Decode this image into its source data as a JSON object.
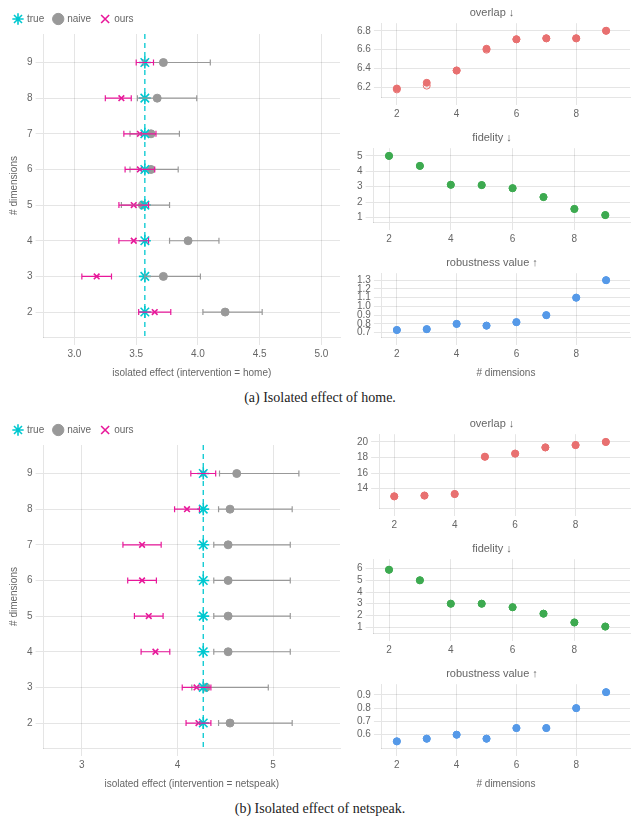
{
  "chart_data": [
    {
      "type": "scatter",
      "y": [
        2,
        3,
        4,
        5,
        6,
        7,
        8,
        9
      ],
      "series": [
        {
          "name": "true",
          "color": "#00C8D0",
          "marker": "star",
          "values": [
            3.57,
            3.57,
            3.57,
            3.57,
            3.57,
            3.57,
            3.57,
            3.57
          ]
        },
        {
          "name": "naive",
          "color": "#999999",
          "marker": "circle",
          "values": [
            4.22,
            3.72,
            3.92,
            3.55,
            3.62,
            3.62,
            3.67,
            3.72
          ],
          "xerr_lo": [
            0.18,
            0.15,
            0.15,
            0.17,
            0.17,
            0.17,
            0.16,
            0.16
          ],
          "xerr_hi": [
            0.3,
            0.3,
            0.25,
            0.22,
            0.22,
            0.23,
            0.32,
            0.38
          ]
        },
        {
          "name": "ours",
          "color": "#E8189A",
          "marker": "x",
          "values": [
            3.65,
            3.18,
            3.48,
            3.48,
            3.53,
            3.53,
            3.38,
            3.57
          ],
          "xerr_lo": [
            0.13,
            0.12,
            0.12,
            0.12,
            0.12,
            0.13,
            0.13,
            0.07
          ],
          "xerr_hi": [
            0.13,
            0.12,
            0.12,
            0.12,
            0.12,
            0.13,
            0.08,
            0.07
          ]
        }
      ],
      "xlabel": "isolated effect (intervention = home)",
      "ylabel": "# dimensions",
      "xlim": [
        2.75,
        5.15
      ],
      "xticks": [
        {
          "value": 3.0,
          "label": "3.0"
        },
        3.5,
        {
          "value": 4.0,
          "label": "4.0"
        },
        4.5,
        {
          "value": 5.0,
          "label": "5.0"
        }
      ],
      "ylim": [
        1.3,
        9.8
      ],
      "yticks": [
        2,
        3,
        4,
        5,
        6,
        7,
        8,
        9
      ],
      "grid": true,
      "legend": "upper left",
      "annotations": [
        {
          "x": 3.57,
          "color": "#00C8D0",
          "line_style": "dashed"
        },
        {
          "text": "(a) Isolated effect of home."
        }
      ]
    },
    {
      "type": "scatter",
      "title": "overlap ↓",
      "x": [
        2,
        3,
        4,
        5,
        6,
        7,
        8,
        9
      ],
      "series": [
        {
          "color": "#E87070",
          "marker": "circle",
          "values": [
            6.19,
            6.25,
            6.38,
            6.61,
            6.71,
            6.72,
            6.72,
            6.8
          ]
        },
        {
          "color": "#E87070",
          "marker": "ring",
          "values": [
            6.18,
            6.22,
            6.38,
            6.6,
            6.71,
            6.72,
            6.72,
            6.8
          ]
        }
      ],
      "xlim": [
        1.5,
        9.8
      ],
      "xticks": [
        2,
        4,
        6,
        8
      ],
      "ylim": [
        6.1,
        6.88
      ],
      "yticks": [
        6.2,
        6.4,
        6.6,
        6.8
      ],
      "grid": true
    },
    {
      "type": "scatter",
      "title": "fidelity ↓",
      "x": [
        2,
        3,
        4,
        5,
        6,
        7,
        8,
        9
      ],
      "series": [
        {
          "color": "#3DAA50",
          "marker": "circle",
          "values": [
            5.0,
            4.35,
            3.12,
            3.1,
            2.9,
            2.32,
            1.55,
            1.15
          ]
        },
        {
          "color": "#3DAA50",
          "marker": "ring",
          "values": [
            5.0,
            4.35,
            3.12,
            3.1,
            2.9,
            2.32,
            1.55,
            1.15
          ]
        }
      ],
      "xlim": [
        1.5,
        9.8
      ],
      "xticks": [
        2,
        4,
        6,
        8
      ],
      "ylim": [
        0.7,
        5.5
      ],
      "yticks": [
        1,
        2,
        3,
        4,
        5
      ],
      "grid": true
    },
    {
      "type": "scatter",
      "title": "robustness value ↑",
      "x": [
        2,
        3,
        4,
        5,
        6,
        7,
        8,
        9
      ],
      "series": [
        {
          "color": "#5599E8",
          "marker": "circle",
          "values": [
            0.73,
            0.74,
            0.8,
            0.78,
            0.82,
            0.9,
            1.1,
            1.3
          ]
        },
        {
          "color": "#5599E8",
          "marker": "ring",
          "values": [
            0.73,
            0.74,
            0.8,
            0.78,
            0.82,
            0.9,
            1.1,
            1.3
          ]
        }
      ],
      "xlabel": "# dimensions",
      "xlim": [
        1.5,
        9.8
      ],
      "xticks": [
        2,
        4,
        6,
        8
      ],
      "ylim": [
        0.65,
        1.38
      ],
      "yticks": [
        0.7,
        0.8,
        0.9,
        {
          "value": 1.0,
          "label": "1.0"
        },
        1.1,
        1.2,
        1.3
      ],
      "grid": true
    },
    {
      "type": "scatter",
      "y": [
        2,
        3,
        4,
        5,
        6,
        7,
        8,
        9
      ],
      "series": [
        {
          "name": "true",
          "color": "#00C8D0",
          "marker": "star",
          "values": [
            4.27,
            4.27,
            4.27,
            4.27,
            4.27,
            4.27,
            4.27,
            4.27
          ]
        },
        {
          "name": "naive",
          "color": "#999999",
          "marker": "circle",
          "values": [
            4.55,
            4.3,
            4.53,
            4.53,
            4.53,
            4.53,
            4.55,
            4.62
          ],
          "xerr_lo": [
            0.12,
            0.15,
            0.15,
            0.15,
            0.15,
            0.15,
            0.12,
            0.18
          ],
          "xerr_hi": [
            0.65,
            0.65,
            0.65,
            0.65,
            0.65,
            0.65,
            0.65,
            0.65
          ]
        },
        {
          "name": "ours",
          "color": "#E8189A",
          "marker": "x",
          "values": [
            4.22,
            4.2,
            3.77,
            3.7,
            3.63,
            3.63,
            4.1,
            4.27
          ],
          "xerr_lo": [
            0.13,
            0.15,
            0.15,
            0.15,
            0.15,
            0.2,
            0.13,
            0.13
          ],
          "xerr_hi": [
            0.13,
            0.15,
            0.15,
            0.15,
            0.15,
            0.2,
            0.13,
            0.13
          ]
        }
      ],
      "xlabel": "isolated effect (intervention = netspeak)",
      "ylabel": "# dimensions",
      "xlim": [
        2.6,
        5.7
      ],
      "xticks": [
        3,
        4,
        5
      ],
      "ylim": [
        1.3,
        9.8
      ],
      "yticks": [
        2,
        3,
        4,
        5,
        6,
        7,
        8,
        9
      ],
      "grid": true,
      "legend": "upper left",
      "annotations": [
        {
          "x": 4.27,
          "color": "#00C8D0",
          "line_style": "dashed"
        },
        {
          "text": "(b) Isolated effect of netspeak."
        }
      ]
    },
    {
      "type": "scatter",
      "title": "overlap ↓",
      "x": [
        2,
        3,
        4,
        5,
        6,
        7,
        8,
        9
      ],
      "series": [
        {
          "color": "#E87070",
          "marker": "circle",
          "values": [
            13.0,
            13.1,
            13.3,
            18.1,
            18.5,
            19.3,
            19.6,
            20.0
          ]
        },
        {
          "color": "#E87070",
          "marker": "ring",
          "values": [
            13.0,
            13.1,
            13.3,
            18.1,
            18.5,
            19.3,
            19.6,
            20.0
          ]
        }
      ],
      "xlim": [
        1.5,
        9.8
      ],
      "xticks": [
        2,
        4,
        6,
        8
      ],
      "ylim": [
        11.5,
        21.0
      ],
      "yticks": [
        14,
        16,
        18,
        20
      ],
      "grid": true
    },
    {
      "type": "scatter",
      "title": "fidelity ↓",
      "x": [
        2,
        3,
        4,
        5,
        6,
        7,
        8,
        9
      ],
      "series": [
        {
          "color": "#3DAA50",
          "marker": "circle",
          "values": [
            5.9,
            5.0,
            3.0,
            3.0,
            2.7,
            2.15,
            1.4,
            1.05
          ]
        },
        {
          "color": "#3DAA50",
          "marker": "ring",
          "values": [
            5.9,
            5.0,
            3.0,
            3.0,
            2.7,
            2.15,
            1.4,
            1.05
          ]
        }
      ],
      "xlim": [
        1.5,
        9.8
      ],
      "xticks": [
        2,
        4,
        6,
        8
      ],
      "ylim": [
        0.5,
        6.8
      ],
      "yticks": [
        1,
        2,
        3,
        4,
        5,
        6
      ],
      "grid": true
    },
    {
      "type": "scatter",
      "title": "robustness value ↑",
      "x": [
        2,
        3,
        4,
        5,
        6,
        7,
        8,
        9
      ],
      "series": [
        {
          "color": "#5599E8",
          "marker": "circle",
          "values": [
            0.55,
            0.57,
            0.6,
            0.57,
            0.65,
            0.65,
            0.8,
            0.92
          ]
        },
        {
          "color": "#5599E8",
          "marker": "ring",
          "values": [
            0.55,
            0.57,
            0.6,
            0.57,
            0.65,
            0.65,
            0.8,
            0.92
          ]
        }
      ],
      "xlabel": "# dimensions",
      "xlim": [
        1.5,
        9.8
      ],
      "xticks": [
        2,
        4,
        6,
        8
      ],
      "ylim": [
        0.5,
        0.98
      ],
      "yticks": [
        0.6,
        0.7,
        0.8,
        0.9
      ],
      "grid": true
    }
  ]
}
